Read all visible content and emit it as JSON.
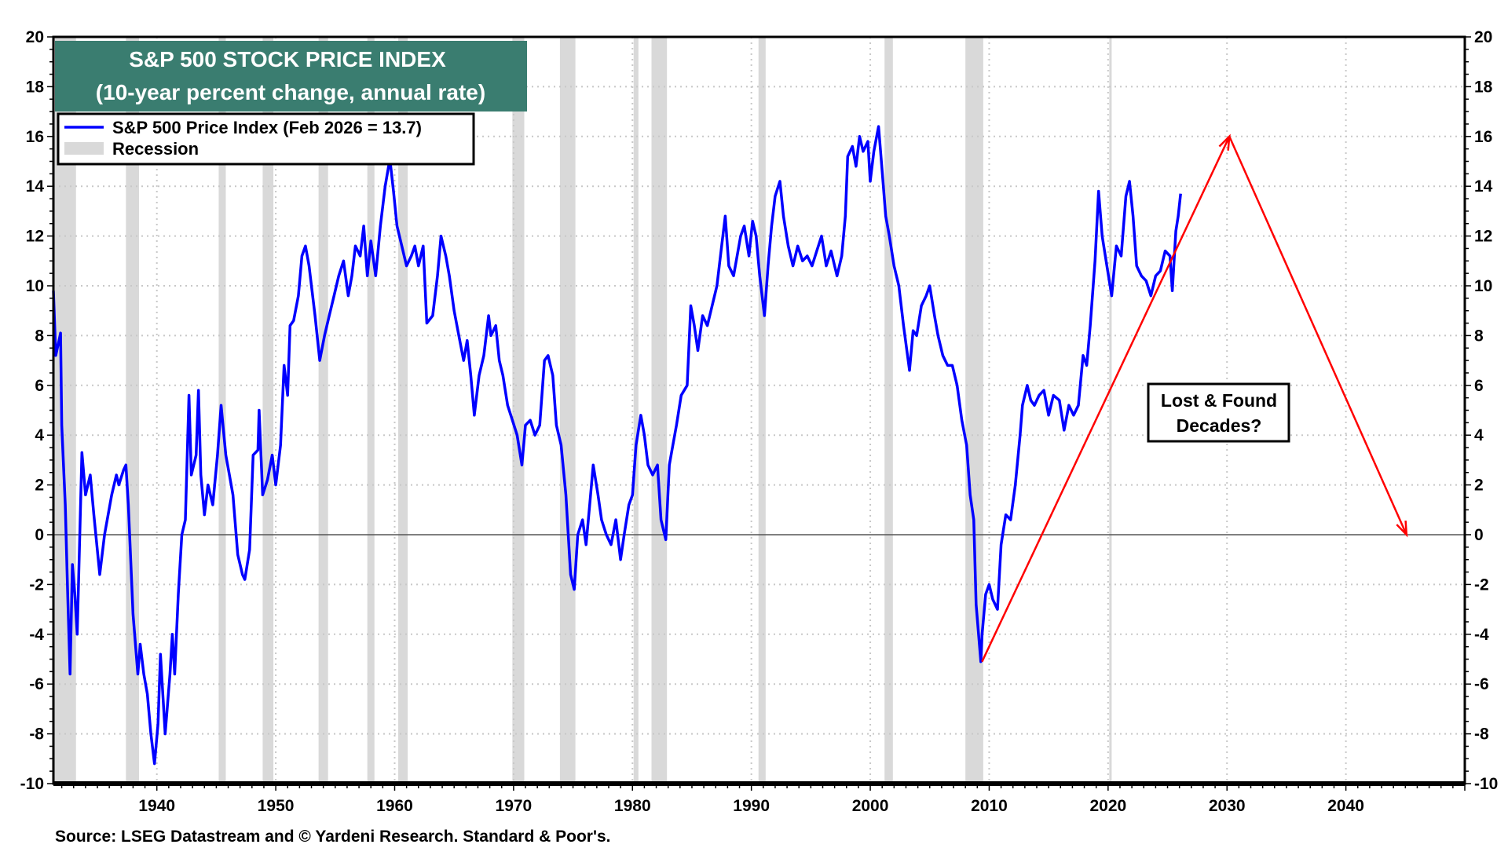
{
  "chart_data": {
    "type": "line",
    "title": "S&P 500 STOCK PRICE INDEX",
    "subtitle": "(10-year percent change, annual rate)",
    "source": "Source: LSEG Datastream and © Yardeni Research. Standard & Poor's.",
    "xlim": [
      1931.3,
      2050
    ],
    "ylim": [
      -10,
      20
    ],
    "y_ticks": [
      20,
      18,
      16,
      14,
      12,
      10,
      8,
      6,
      4,
      2,
      0,
      -2,
      -4,
      -6,
      -8,
      -10
    ],
    "x_ticks": [
      1940,
      1950,
      1960,
      1970,
      1980,
      1990,
      2000,
      2010,
      2020,
      2030,
      2040
    ],
    "grid": true,
    "legend_placement": "top-left",
    "colors": {
      "series": "#0000ff",
      "recession": "#d9d9d9",
      "title_bg": "#3a7d70",
      "arrow": "#ff0000",
      "zero_line": "#555555"
    },
    "legend": {
      "series_label": "S&P 500 Price Index (Feb 2026 = 13.7)",
      "recession_label": "Recession"
    },
    "annotation": {
      "line1": "Lost & Found",
      "line2": "Decades?"
    },
    "recessions": [
      [
        1931.3,
        1933.2
      ],
      [
        1937.4,
        1938.5
      ],
      [
        1945.2,
        1945.8
      ],
      [
        1948.9,
        1949.8
      ],
      [
        1953.6,
        1954.4
      ],
      [
        1957.7,
        1958.3
      ],
      [
        1960.3,
        1961.1
      ],
      [
        1969.9,
        1970.9
      ],
      [
        1973.9,
        1975.2
      ],
      [
        1980.1,
        1980.5
      ],
      [
        1981.6,
        1982.9
      ],
      [
        1990.6,
        1991.2
      ],
      [
        2001.2,
        2001.9
      ],
      [
        2008.0,
        2009.5
      ],
      [
        2020.1,
        2020.3
      ]
    ],
    "arrows": [
      {
        "from": [
          2009.4,
          -5.1
        ],
        "to": [
          2030.2,
          16.0
        ]
      },
      {
        "from": [
          2030.2,
          16.0
        ],
        "to": [
          2045.1,
          0.0
        ]
      }
    ],
    "series": [
      {
        "name": "S&P 500 Price Index (Feb 2026 = 13.7)",
        "x": [
          1931.3,
          1931.5,
          1931.9,
          1932.0,
          1932.3,
          1932.5,
          1932.7,
          1932.9,
          1933.1,
          1933.3,
          1933.7,
          1934.0,
          1934.4,
          1934.7,
          1935.2,
          1935.6,
          1936.2,
          1936.6,
          1936.8,
          1937.2,
          1937.4,
          1937.6,
          1938.0,
          1938.4,
          1938.6,
          1938.9,
          1939.2,
          1939.5,
          1939.8,
          1940.1,
          1940.3,
          1940.7,
          1941.1,
          1941.3,
          1941.5,
          1941.8,
          1942.1,
          1942.4,
          1942.7,
          1942.9,
          1943.3,
          1943.5,
          1943.7,
          1944.0,
          1944.3,
          1944.7,
          1945.1,
          1945.4,
          1945.8,
          1946.1,
          1946.4,
          1946.8,
          1947.2,
          1947.4,
          1947.8,
          1948.1,
          1948.5,
          1948.6,
          1948.9,
          1949.3,
          1949.7,
          1950.0,
          1950.4,
          1950.7,
          1951.0,
          1951.2,
          1951.5,
          1951.9,
          1952.2,
          1952.5,
          1952.8,
          1953.3,
          1953.7,
          1954.1,
          1954.5,
          1954.9,
          1955.3,
          1955.7,
          1956.1,
          1956.4,
          1956.7,
          1957.1,
          1957.4,
          1957.7,
          1958.0,
          1958.4,
          1958.8,
          1959.2,
          1959.6,
          1959.9,
          1960.2,
          1960.6,
          1961.0,
          1961.4,
          1961.7,
          1962.0,
          1962.4,
          1962.7,
          1963.2,
          1963.6,
          1963.9,
          1964.3,
          1964.6,
          1965.0,
          1965.4,
          1965.8,
          1966.1,
          1966.4,
          1966.7,
          1967.1,
          1967.5,
          1967.9,
          1968.1,
          1968.5,
          1968.8,
          1969.1,
          1969.5,
          1969.9,
          1970.3,
          1970.7,
          1971.0,
          1971.4,
          1971.8,
          1972.2,
          1972.6,
          1972.9,
          1973.3,
          1973.6,
          1974.0,
          1974.4,
          1974.8,
          1975.1,
          1975.4,
          1975.8,
          1976.1,
          1976.4,
          1976.7,
          1977.1,
          1977.4,
          1977.8,
          1978.2,
          1978.6,
          1979.0,
          1979.3,
          1979.7,
          1980.0,
          1980.3,
          1980.7,
          1981.0,
          1981.3,
          1981.7,
          1982.1,
          1982.4,
          1982.8,
          1983.1,
          1983.4,
          1983.7,
          1984.1,
          1984.6,
          1984.9,
          1985.2,
          1985.5,
          1985.9,
          1986.3,
          1986.7,
          1987.1,
          1987.5,
          1987.8,
          1988.1,
          1988.5,
          1988.8,
          1989.1,
          1989.4,
          1989.8,
          1990.1,
          1990.4,
          1990.7,
          1991.1,
          1991.4,
          1991.7,
          1992.0,
          1992.4,
          1992.7,
          1993.1,
          1993.5,
          1993.9,
          1994.3,
          1994.7,
          1995.1,
          1995.5,
          1995.9,
          1996.3,
          1996.7,
          1997.2,
          1997.6,
          1997.9,
          1998.1,
          1998.5,
          1998.8,
          1999.1,
          1999.4,
          1999.8,
          2000.0,
          2000.3,
          2000.7,
          2001.0,
          2001.3,
          2001.6,
          2002.0,
          2002.4,
          2002.8,
          2003.3,
          2003.6,
          2003.9,
          2004.3,
          2004.7,
          2005.0,
          2005.4,
          2005.7,
          2006.1,
          2006.5,
          2006.9,
          2007.3,
          2007.7,
          2008.1,
          2008.4,
          2008.7,
          2008.9,
          2009.3,
          2009.4,
          2009.7,
          2010.0,
          2010.3,
          2010.7,
          2011.0,
          2011.4,
          2011.8,
          2012.2,
          2012.6,
          2012.8,
          2013.2,
          2013.5,
          2013.8,
          2014.2,
          2014.6,
          2015.0,
          2015.4,
          2015.9,
          2016.3,
          2016.7,
          2017.1,
          2017.5,
          2017.9,
          2018.2,
          2018.5,
          2018.9,
          2019.2,
          2019.5,
          2019.9,
          2020.3,
          2020.7,
          2021.1,
          2021.5,
          2021.8,
          2022.1,
          2022.4,
          2022.8,
          2023.2,
          2023.6,
          2024.0,
          2024.4,
          2024.8,
          2025.2,
          2025.4,
          2025.7,
          2025.9,
          2026.1
        ],
        "y": [
          9.8,
          7.2,
          8.1,
          4.4,
          1.2,
          -2.4,
          -5.6,
          -1.2,
          -2.4,
          -4.0,
          3.3,
          1.6,
          2.4,
          0.8,
          -1.6,
          0.0,
          1.6,
          2.4,
          2.0,
          2.6,
          2.8,
          1.2,
          -3.2,
          -5.6,
          -4.4,
          -5.6,
          -6.4,
          -8.0,
          -9.2,
          -7.6,
          -4.8,
          -8.0,
          -5.6,
          -4.0,
          -5.6,
          -2.4,
          0.0,
          0.6,
          5.6,
          2.4,
          3.2,
          5.8,
          2.4,
          0.8,
          2.0,
          1.2,
          3.2,
          5.2,
          3.2,
          2.4,
          1.6,
          -0.8,
          -1.6,
          -1.8,
          -0.6,
          3.2,
          3.4,
          5.0,
          1.6,
          2.2,
          3.2,
          2.0,
          3.6,
          6.8,
          5.6,
          8.4,
          8.6,
          9.6,
          11.2,
          11.6,
          10.8,
          8.8,
          7.0,
          8.0,
          8.8,
          9.6,
          10.4,
          11.0,
          9.6,
          10.4,
          11.6,
          11.2,
          12.4,
          10.4,
          11.8,
          10.4,
          12.4,
          14.0,
          15.1,
          13.8,
          12.4,
          11.6,
          10.8,
          11.2,
          11.6,
          10.8,
          11.6,
          8.5,
          8.8,
          10.4,
          12.0,
          11.2,
          10.4,
          9.0,
          8.0,
          7.0,
          7.8,
          6.4,
          4.8,
          6.4,
          7.2,
          8.8,
          8.0,
          8.4,
          7.0,
          6.4,
          5.2,
          4.6,
          4.0,
          2.8,
          4.4,
          4.6,
          4.0,
          4.4,
          7.0,
          7.2,
          6.4,
          4.4,
          3.6,
          1.6,
          -1.6,
          -2.2,
          0.0,
          0.6,
          -0.4,
          1.2,
          2.8,
          1.6,
          0.6,
          0.0,
          -0.4,
          0.6,
          -1.0,
          0.0,
          1.2,
          1.6,
          3.6,
          4.8,
          4.0,
          2.8,
          2.4,
          2.8,
          0.6,
          -0.2,
          2.8,
          3.6,
          4.4,
          5.6,
          6.0,
          9.2,
          8.4,
          7.4,
          8.8,
          8.4,
          9.2,
          10.0,
          11.6,
          12.8,
          10.8,
          10.4,
          11.2,
          12.0,
          12.4,
          11.2,
          12.6,
          12.0,
          10.4,
          8.8,
          10.8,
          12.4,
          13.6,
          14.2,
          12.8,
          11.6,
          10.8,
          11.6,
          11.0,
          11.2,
          10.8,
          11.4,
          12.0,
          10.8,
          11.4,
          10.4,
          11.2,
          12.8,
          15.2,
          15.6,
          14.8,
          16.0,
          15.4,
          15.8,
          14.2,
          15.4,
          16.4,
          14.6,
          12.8,
          12.0,
          10.8,
          10.0,
          8.4,
          6.6,
          8.2,
          8.0,
          9.2,
          9.6,
          10.0,
          8.8,
          8.0,
          7.2,
          6.8,
          6.8,
          6.0,
          4.6,
          3.6,
          1.6,
          0.6,
          -2.8,
          -5.1,
          -4.0,
          -2.4,
          -2.0,
          -2.6,
          -3.0,
          -0.4,
          0.8,
          0.6,
          2.0,
          4.0,
          5.2,
          6.0,
          5.4,
          5.2,
          5.6,
          5.8,
          4.8,
          5.6,
          5.4,
          4.2,
          5.2,
          4.8,
          5.2,
          7.2,
          6.8,
          8.4,
          11.0,
          13.8,
          12.0,
          10.8,
          9.6,
          11.6,
          11.2,
          13.6,
          14.2,
          12.8,
          10.8,
          10.4,
          10.2,
          9.6,
          10.4,
          10.6,
          11.4,
          11.2,
          9.8,
          12.2,
          12.8,
          13.7
        ]
      }
    ]
  }
}
